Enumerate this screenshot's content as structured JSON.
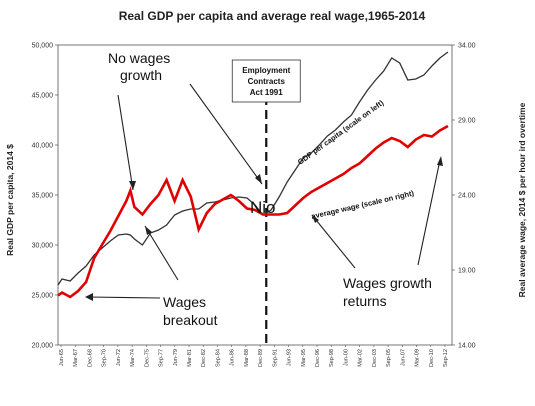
{
  "chart_data": {
    "type": "line",
    "title": "Real GDP per capita and average real wage,1965-2014",
    "ylabel_left": "Real GDP per capita, 2014 $",
    "ylabel_right": "Real average wage, 2014 $ per hour ird overtime",
    "yrange_left": [
      20000,
      50000
    ],
    "yrange_right": [
      14,
      34
    ],
    "yticks_left": [
      "20,000",
      "25,000",
      "30,000",
      "35,000",
      "40,000",
      "45,000",
      "50,000"
    ],
    "yticks_right": [
      "14.00",
      "19.00",
      "24.00",
      "29.00",
      "34.00"
    ],
    "xticks": [
      "Jun-65",
      "Mar-67",
      "Dec-68",
      "Sep-70",
      "Jun-72",
      "Mar-74",
      "Dec-75",
      "Sep-77",
      "Jun-79",
      "Mar-81",
      "Dec-82",
      "Sep-84",
      "Jun-86",
      "Mar-88",
      "Dec-89",
      "Sep-91",
      "Jun-93",
      "Mar-95",
      "Dec-96",
      "Sep-98",
      "Jun-00",
      "Mar-02",
      "Dec-03",
      "Sep-05",
      "Jun-07",
      "Mar-09",
      "Dec-10",
      "Sep-12"
    ],
    "grid": false,
    "series": [
      {
        "name": "GDP per capita (scale on left)",
        "axis": "left",
        "color": "#333333",
        "x": [
          1965.5,
          1966,
          1967,
          1968,
          1969,
          1970,
          1971,
          1972,
          1973,
          1974,
          1974.5,
          1975,
          1976,
          1977,
          1978,
          1979,
          1980,
          1981,
          1982,
          1983,
          1984,
          1985,
          1986,
          1987,
          1988,
          1989,
          1990,
          1991,
          1992,
          1993,
          1994,
          1995,
          1996,
          1997,
          1998,
          1999,
          2000,
          2001,
          2002,
          2003,
          2004,
          2005,
          2006,
          2007,
          2008,
          2009,
          2010,
          2011,
          2012,
          2013,
          2014
        ],
        "values": [
          26000,
          26600,
          26400,
          27200,
          27900,
          29000,
          29700,
          30400,
          31000,
          31100,
          31000,
          30600,
          30000,
          31200,
          31500,
          32000,
          33000,
          33400,
          33600,
          33600,
          34200,
          34300,
          34500,
          34700,
          34800,
          34700,
          34000,
          33000,
          33500,
          34800,
          36300,
          37500,
          38700,
          39200,
          40000,
          40900,
          41500,
          42300,
          43000,
          44300,
          45500,
          46500,
          47400,
          48700,
          48200,
          46500,
          46600,
          47000,
          47900,
          48700,
          49300
        ]
      },
      {
        "name": "average wage (scale on right)",
        "axis": "right",
        "color": "#e00000",
        "x": [
          1965.5,
          1966,
          1967,
          1968,
          1969,
          1970,
          1971,
          1972,
          1973,
          1974,
          1974.5,
          1975,
          1976,
          1977,
          1978,
          1979,
          1980,
          1981,
          1982,
          1983,
          1984,
          1985,
          1986,
          1987,
          1988,
          1989,
          1990,
          1991,
          1992,
          1993,
          1994,
          1995,
          1996,
          1997,
          1998,
          1999,
          2000,
          2001,
          2002,
          2003,
          2004,
          2005,
          2006,
          2007,
          2008,
          2009,
          2010,
          2011,
          2012,
          2013,
          2014
        ],
        "values": [
          17.3,
          17.5,
          17.2,
          17.6,
          18.2,
          19.8,
          20.7,
          21.6,
          22.6,
          23.6,
          24.3,
          23.2,
          22.7,
          23.4,
          24.0,
          25.0,
          23.6,
          25.0,
          23.9,
          21.7,
          22.8,
          23.4,
          23.7,
          24.0,
          23.6,
          23.1,
          23.0,
          22.7,
          22.7,
          22.7,
          22.8,
          23.3,
          23.8,
          24.2,
          24.5,
          24.8,
          25.1,
          25.4,
          25.8,
          26.1,
          26.6,
          27.1,
          27.5,
          27.8,
          27.6,
          27.2,
          27.7,
          28.0,
          27.9,
          28.3,
          28.6
        ]
      }
    ],
    "annotations": {
      "no_wages_growth": [
        "No wages",
        "growth"
      ],
      "nio": "Nio",
      "wages_breakout": [
        "Wages",
        "breakout"
      ],
      "wages_growth_returns": [
        "Wages growth",
        "returns"
      ],
      "act_box": [
        "Employment",
        "Contracts",
        "Act 1991"
      ],
      "act_year": 1991.4
    }
  }
}
